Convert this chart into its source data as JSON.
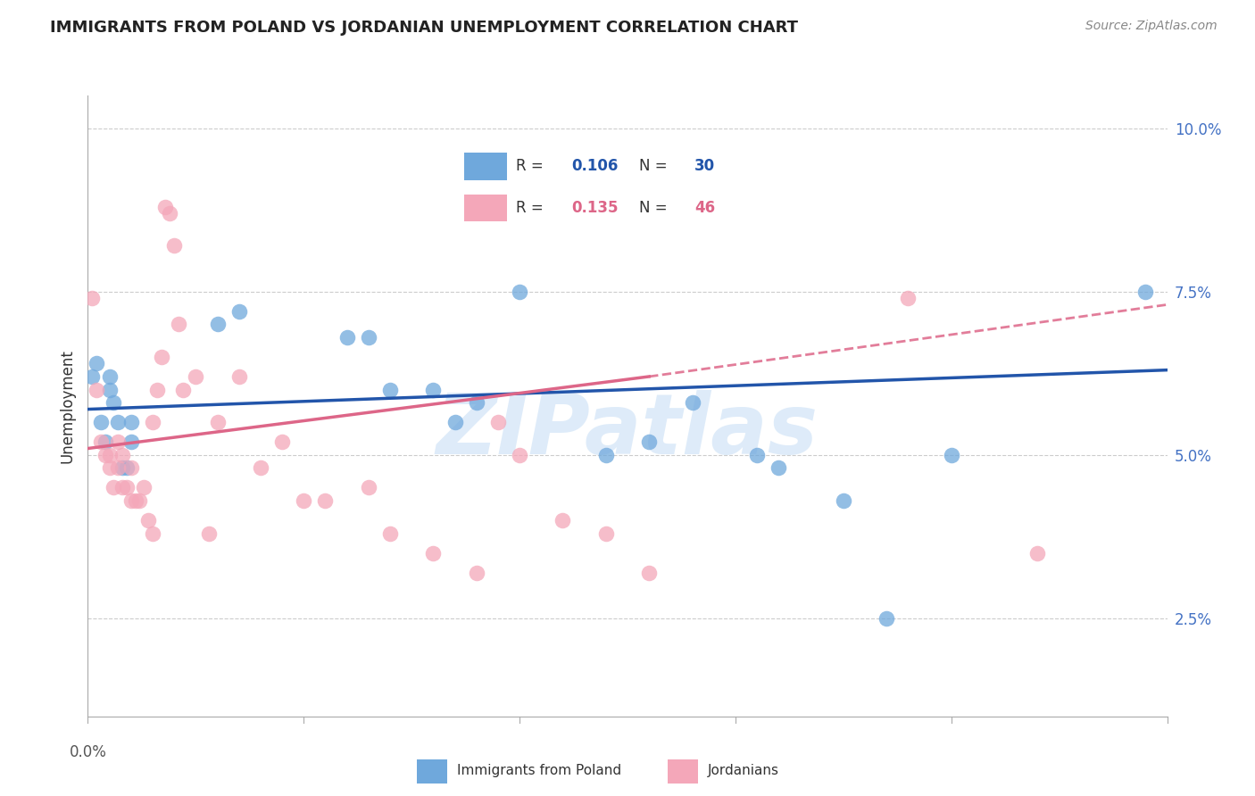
{
  "title": "IMMIGRANTS FROM POLAND VS JORDANIAN UNEMPLOYMENT CORRELATION CHART",
  "source": "Source: ZipAtlas.com",
  "ylabel": "Unemployment",
  "ytick_labels": [
    "2.5%",
    "5.0%",
    "7.5%",
    "10.0%"
  ],
  "ytick_values": [
    0.025,
    0.05,
    0.075,
    0.1
  ],
  "xlim": [
    0.0,
    0.25
  ],
  "ylim": [
    0.01,
    0.105
  ],
  "blue_scatter": [
    [
      0.001,
      0.062
    ],
    [
      0.002,
      0.064
    ],
    [
      0.003,
      0.055
    ],
    [
      0.004,
      0.052
    ],
    [
      0.005,
      0.06
    ],
    [
      0.005,
      0.062
    ],
    [
      0.006,
      0.058
    ],
    [
      0.007,
      0.055
    ],
    [
      0.008,
      0.048
    ],
    [
      0.009,
      0.048
    ],
    [
      0.01,
      0.052
    ],
    [
      0.01,
      0.055
    ],
    [
      0.03,
      0.07
    ],
    [
      0.035,
      0.072
    ],
    [
      0.06,
      0.068
    ],
    [
      0.065,
      0.068
    ],
    [
      0.07,
      0.06
    ],
    [
      0.08,
      0.06
    ],
    [
      0.085,
      0.055
    ],
    [
      0.09,
      0.058
    ],
    [
      0.1,
      0.075
    ],
    [
      0.12,
      0.05
    ],
    [
      0.13,
      0.052
    ],
    [
      0.14,
      0.058
    ],
    [
      0.155,
      0.05
    ],
    [
      0.16,
      0.048
    ],
    [
      0.175,
      0.043
    ],
    [
      0.185,
      0.025
    ],
    [
      0.2,
      0.05
    ],
    [
      0.245,
      0.075
    ]
  ],
  "pink_scatter": [
    [
      0.001,
      0.074
    ],
    [
      0.002,
      0.06
    ],
    [
      0.003,
      0.052
    ],
    [
      0.004,
      0.05
    ],
    [
      0.005,
      0.048
    ],
    [
      0.005,
      0.05
    ],
    [
      0.006,
      0.045
    ],
    [
      0.007,
      0.048
    ],
    [
      0.007,
      0.052
    ],
    [
      0.008,
      0.045
    ],
    [
      0.008,
      0.05
    ],
    [
      0.009,
      0.045
    ],
    [
      0.01,
      0.043
    ],
    [
      0.01,
      0.048
    ],
    [
      0.011,
      0.043
    ],
    [
      0.012,
      0.043
    ],
    [
      0.013,
      0.045
    ],
    [
      0.014,
      0.04
    ],
    [
      0.015,
      0.038
    ],
    [
      0.015,
      0.055
    ],
    [
      0.016,
      0.06
    ],
    [
      0.017,
      0.065
    ],
    [
      0.018,
      0.088
    ],
    [
      0.019,
      0.087
    ],
    [
      0.02,
      0.082
    ],
    [
      0.021,
      0.07
    ],
    [
      0.022,
      0.06
    ],
    [
      0.025,
      0.062
    ],
    [
      0.028,
      0.038
    ],
    [
      0.03,
      0.055
    ],
    [
      0.035,
      0.062
    ],
    [
      0.04,
      0.048
    ],
    [
      0.045,
      0.052
    ],
    [
      0.05,
      0.043
    ],
    [
      0.055,
      0.043
    ],
    [
      0.065,
      0.045
    ],
    [
      0.07,
      0.038
    ],
    [
      0.08,
      0.035
    ],
    [
      0.09,
      0.032
    ],
    [
      0.095,
      0.055
    ],
    [
      0.1,
      0.05
    ],
    [
      0.11,
      0.04
    ],
    [
      0.12,
      0.038
    ],
    [
      0.13,
      0.032
    ],
    [
      0.19,
      0.074
    ],
    [
      0.22,
      0.035
    ]
  ],
  "blue_line": [
    [
      0.0,
      0.057
    ],
    [
      0.25,
      0.063
    ]
  ],
  "pink_line_solid": [
    [
      0.0,
      0.051
    ],
    [
      0.13,
      0.062
    ]
  ],
  "pink_line_dashed": [
    [
      0.13,
      0.062
    ],
    [
      0.25,
      0.073
    ]
  ],
  "blue_dot_color": "#6fa8dc",
  "blue_line_color": "#2255aa",
  "pink_dot_color": "#f4a7b9",
  "pink_line_color": "#dd6688",
  "right_axis_color": "#4472c4",
  "grid_color": "#cccccc",
  "background_color": "#ffffff",
  "watermark_text": "ZIPatlas",
  "watermark_color": "#c8dff5",
  "legend_r1_R": "0.106",
  "legend_r1_N": "30",
  "legend_r2_R": "0.135",
  "legend_r2_N": "46",
  "title_fontsize": 13,
  "source_fontsize": 10,
  "tick_fontsize": 12,
  "ylabel_fontsize": 12
}
